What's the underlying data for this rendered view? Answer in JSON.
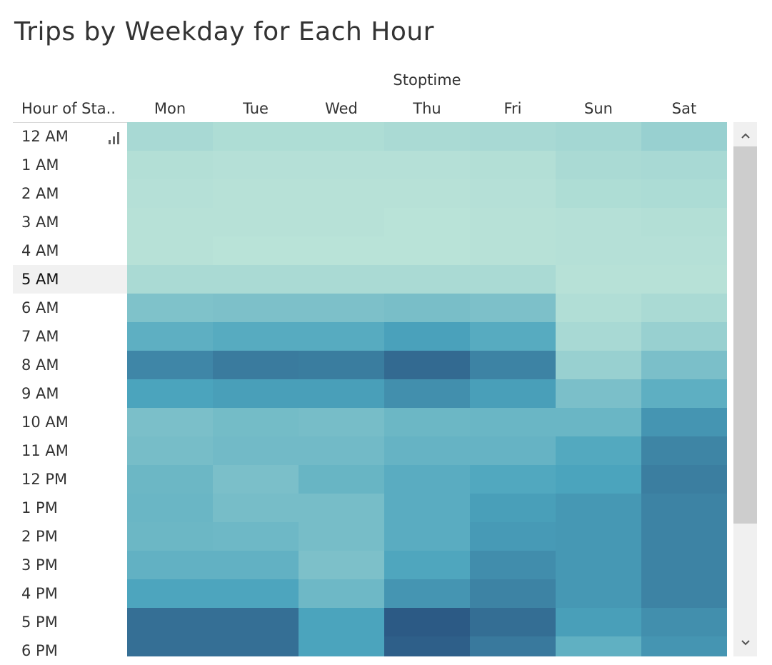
{
  "title": "Trips by Weekday for Each Hour",
  "column_group_label": "Stoptime",
  "row_field_label": "Hour of Sta..",
  "selected_row": "5 AM",
  "chart_data": {
    "type": "heatmap",
    "title": "Trips by Weekday for Each Hour",
    "xlabel": "Stoptime",
    "ylabel": "Hour of Sta..",
    "columns": [
      "Mon",
      "Tue",
      "Wed",
      "Thu",
      "Fri",
      "Sun",
      "Sat"
    ],
    "rows": [
      "12 AM",
      "1 AM",
      "2 AM",
      "3 AM",
      "4 AM",
      "5 AM",
      "6 AM",
      "7 AM",
      "8 AM",
      "9 AM",
      "10 AM",
      "11 AM",
      "12 PM",
      "1 PM",
      "2 PM",
      "3 PM",
      "4 PM",
      "5 PM",
      "6 PM"
    ],
    "intensity": [
      [
        0.1,
        0.07,
        0.07,
        0.09,
        0.1,
        0.12,
        0.18
      ],
      [
        0.05,
        0.04,
        0.04,
        0.04,
        0.05,
        0.09,
        0.1
      ],
      [
        0.04,
        0.03,
        0.03,
        0.03,
        0.04,
        0.07,
        0.08
      ],
      [
        0.03,
        0.03,
        0.03,
        0.02,
        0.03,
        0.04,
        0.05
      ],
      [
        0.03,
        0.02,
        0.02,
        0.02,
        0.03,
        0.04,
        0.04
      ],
      [
        0.09,
        0.09,
        0.09,
        0.09,
        0.09,
        0.03,
        0.03
      ],
      [
        0.3,
        0.31,
        0.31,
        0.33,
        0.31,
        0.06,
        0.09
      ],
      [
        0.46,
        0.49,
        0.49,
        0.57,
        0.49,
        0.1,
        0.18
      ],
      [
        0.73,
        0.8,
        0.79,
        0.9,
        0.75,
        0.18,
        0.32
      ],
      [
        0.55,
        0.58,
        0.58,
        0.68,
        0.58,
        0.32,
        0.46
      ],
      [
        0.32,
        0.35,
        0.34,
        0.39,
        0.4,
        0.4,
        0.64
      ],
      [
        0.34,
        0.36,
        0.36,
        0.42,
        0.42,
        0.51,
        0.74
      ],
      [
        0.39,
        0.32,
        0.41,
        0.48,
        0.52,
        0.55,
        0.78
      ],
      [
        0.4,
        0.34,
        0.34,
        0.48,
        0.58,
        0.62,
        0.75
      ],
      [
        0.39,
        0.38,
        0.34,
        0.48,
        0.61,
        0.62,
        0.75
      ],
      [
        0.44,
        0.44,
        0.31,
        0.53,
        0.69,
        0.62,
        0.75
      ],
      [
        0.54,
        0.54,
        0.38,
        0.64,
        0.75,
        0.62,
        0.75
      ],
      [
        0.87,
        0.87,
        0.55,
        1.0,
        0.88,
        0.58,
        0.68
      ],
      [
        0.87,
        0.87,
        0.55,
        0.97,
        0.81,
        0.45,
        0.64
      ]
    ],
    "color_scale": [
      "#bde5d9",
      "#2c5a85"
    ],
    "colors": {
      "heat_low": "#bde5d9",
      "heat_mid": "#4ba4bd",
      "heat_high": "#2c5a85",
      "selected_row_bg": "#f1f1f1",
      "scrollbar_track": "#f0f0f0",
      "scrollbar_thumb": "#cdcdcd"
    },
    "legend": "none",
    "grid": false
  },
  "icons": {
    "sort": "sort-bars-icon",
    "scroll_up": "chevron-up-icon",
    "scroll_down": "chevron-down-icon"
  }
}
